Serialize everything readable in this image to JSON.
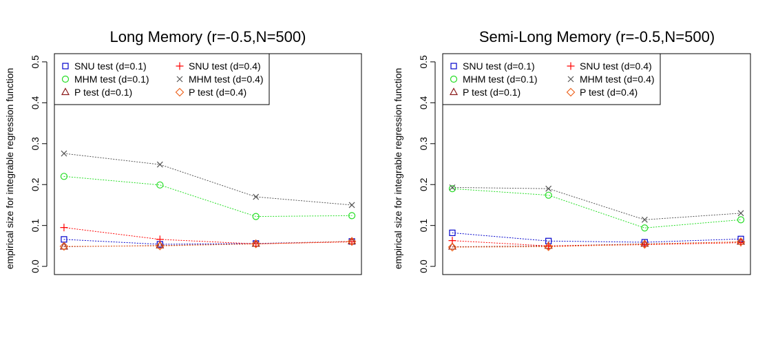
{
  "chart_data": [
    {
      "type": "line",
      "title": "Long Memory (r=-0.5,N=500)",
      "xlabel": "",
      "ylabel": "empirical size for integrable regression function",
      "x": [
        1,
        2,
        3,
        4
      ],
      "xlim": [
        0.9,
        4.1
      ],
      "ylim": [
        -0.02,
        0.52
      ],
      "yticks": [
        "0.0",
        "0.1",
        "0.2",
        "0.3",
        "0.4",
        "0.5"
      ],
      "grid": false,
      "legend": "top-left",
      "series": [
        {
          "name": "SNU test (d=0.1)",
          "marker": "square",
          "color": "#0000cc",
          "values": [
            0.066,
            0.054,
            0.056,
            0.061
          ]
        },
        {
          "name": "MHM test (d=0.1)",
          "marker": "circle",
          "color": "#22dd22",
          "values": [
            0.22,
            0.199,
            0.122,
            0.124
          ]
        },
        {
          "name": "P test (d=0.1)",
          "marker": "triangle",
          "color": "#8b1a1a",
          "values": [
            0.048,
            0.051,
            0.055,
            0.061
          ]
        },
        {
          "name": "SNU test (d=0.4)",
          "marker": "plus",
          "color": "#ff0000",
          "values": [
            0.095,
            0.066,
            0.055,
            0.06
          ]
        },
        {
          "name": "MHM test (d=0.4)",
          "marker": "cross",
          "color": "#555555",
          "values": [
            0.276,
            0.249,
            0.17,
            0.15
          ]
        },
        {
          "name": "P test (d=0.4)",
          "marker": "diamond",
          "color": "#ee6622",
          "values": [
            0.049,
            0.05,
            0.055,
            0.061
          ]
        }
      ]
    },
    {
      "type": "line",
      "title": "Semi-Long Memory (r=-0.5,N=500)",
      "xlabel": "",
      "ylabel": "empirical size for integrable regression function",
      "x": [
        1,
        2,
        3,
        4
      ],
      "xlim": [
        0.9,
        4.1
      ],
      "ylim": [
        -0.02,
        0.52
      ],
      "yticks": [
        "0.0",
        "0.1",
        "0.2",
        "0.3",
        "0.4",
        "0.5"
      ],
      "grid": false,
      "legend": "top-left",
      "series": [
        {
          "name": "SNU test (d=0.1)",
          "marker": "square",
          "color": "#0000cc",
          "values": [
            0.082,
            0.062,
            0.059,
            0.067
          ]
        },
        {
          "name": "MHM test (d=0.1)",
          "marker": "circle",
          "color": "#22dd22",
          "values": [
            0.19,
            0.174,
            0.094,
            0.114
          ]
        },
        {
          "name": "P test (d=0.1)",
          "marker": "triangle",
          "color": "#8b1a1a",
          "values": [
            0.048,
            0.05,
            0.055,
            0.06
          ]
        },
        {
          "name": "SNU test (d=0.4)",
          "marker": "plus",
          "color": "#ff0000",
          "values": [
            0.063,
            0.05,
            0.053,
            0.058
          ]
        },
        {
          "name": "MHM test (d=0.4)",
          "marker": "cross",
          "color": "#555555",
          "values": [
            0.193,
            0.19,
            0.114,
            0.13
          ]
        },
        {
          "name": "P test (d=0.4)",
          "marker": "diamond",
          "color": "#ee6622",
          "values": [
            0.047,
            0.048,
            0.054,
            0.06
          ]
        }
      ]
    }
  ]
}
